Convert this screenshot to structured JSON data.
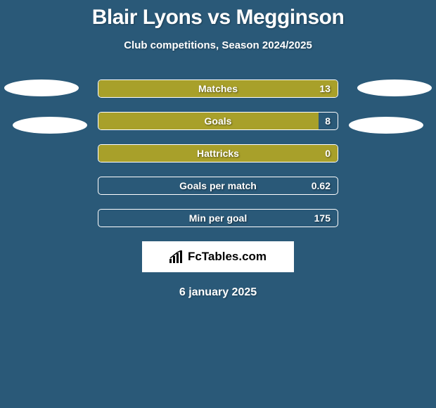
{
  "title": "Blair Lyons vs Megginson",
  "subtitle": "Club competitions, Season 2024/2025",
  "date": "6 january 2025",
  "logo_text": "FcTables.com",
  "background_color": "#2a5978",
  "text_color": "#ffffff",
  "bar_border_color": "#ffffff",
  "ellipse_color": "#ffffff",
  "logo_bg": "#ffffff",
  "stats": [
    {
      "label": "Matches",
      "value": "13",
      "fill_pct": 100,
      "fill_color": "#a8a02a"
    },
    {
      "label": "Goals",
      "value": "8",
      "fill_pct": 92,
      "fill_color": "#a8a02a"
    },
    {
      "label": "Hattricks",
      "value": "0",
      "fill_pct": 100,
      "fill_color": "#a8a02a"
    },
    {
      "label": "Goals per match",
      "value": "0.62",
      "fill_pct": 0,
      "fill_color": "#a8a02a"
    },
    {
      "label": "Min per goal",
      "value": "175",
      "fill_pct": 0,
      "fill_color": "#a8a02a"
    }
  ]
}
